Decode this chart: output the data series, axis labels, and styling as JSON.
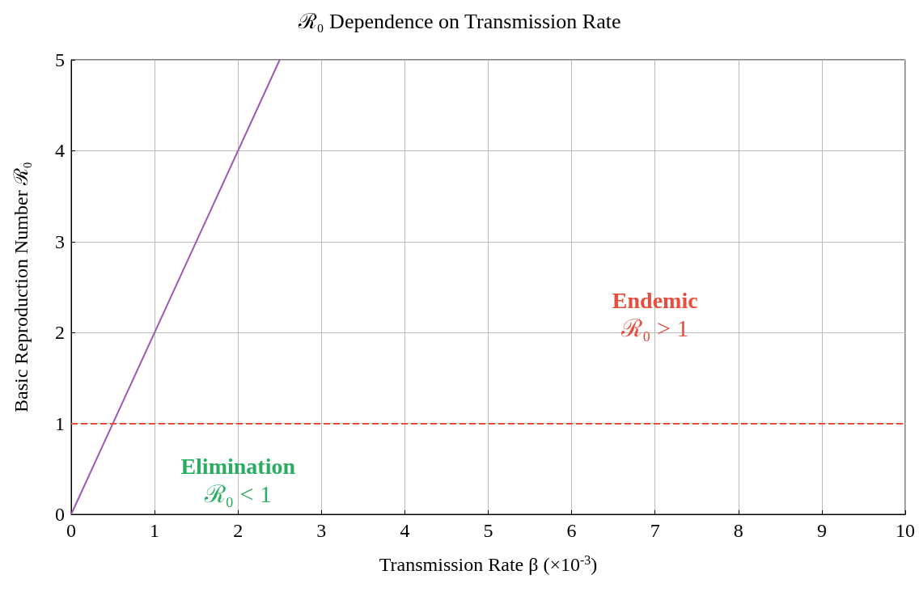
{
  "chart_data": {
    "type": "line",
    "title": "ℛ₀ Dependence on Transmission Rate",
    "xlabel": "Transmission Rate β (×10$^{-3}$)",
    "ylabel": "Basic Reproduction Number ℛ₀",
    "x": [
      0,
      2.5
    ],
    "series": [
      {
        "color": "#9b59b6",
        "values": [
          0,
          5
        ]
      }
    ],
    "xlim": [
      0,
      10
    ],
    "xticks": [
      0,
      1,
      2,
      3,
      4,
      5,
      6,
      7,
      8,
      9,
      10
    ],
    "ylim": [
      0,
      5
    ],
    "yticks": [
      0,
      1,
      2,
      3,
      4,
      5
    ],
    "ref_lines": [
      {
        "axis": "y",
        "value": 1,
        "color": "#e74c3c",
        "line_style": "dashed"
      }
    ],
    "annotations": [
      "Endemic\nℛ₀ > 1",
      "Elimination\nℛ₀ < 1"
    ],
    "grid": true,
    "marker": "none",
    "line_style": "solid"
  }
}
